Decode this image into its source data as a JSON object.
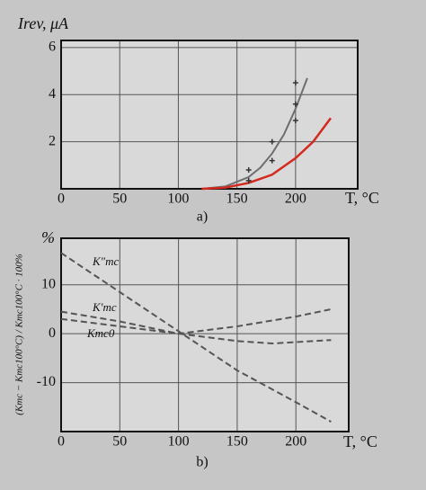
{
  "chart_data": [
    {
      "type": "line",
      "y_label": "Irev, μA",
      "x_label": "T, °C",
      "caption": "a)",
      "xlim": [
        0,
        253
      ],
      "ylim": [
        0,
        6.3
      ],
      "xticks": [
        0,
        50,
        100,
        150,
        200
      ],
      "yticks": [
        2,
        4,
        6
      ],
      "grid": true,
      "series": [
        {
          "color": "#6e6e6e",
          "mode": "line",
          "dash": false,
          "x": [
            120,
            140,
            160,
            170,
            180,
            190,
            200,
            210
          ],
          "values": [
            0,
            0.1,
            0.5,
            0.9,
            1.5,
            2.3,
            3.4,
            4.7
          ]
        },
        {
          "color": "#d42a1e",
          "mode": "line",
          "dash": false,
          "x": [
            120,
            140,
            160,
            180,
            200,
            215,
            230
          ],
          "values": [
            0,
            0.05,
            0.25,
            0.6,
            1.3,
            2.0,
            3.0
          ]
        },
        {
          "color": "#333333",
          "mode": "markers",
          "dash": false,
          "x": [
            160,
            160,
            180,
            180,
            200,
            200,
            200
          ],
          "values": [
            0.35,
            0.8,
            1.2,
            2.0,
            2.9,
            3.6,
            4.5
          ]
        }
      ]
    },
    {
      "type": "line",
      "y_label": "%",
      "y_axis_title": "(Kmc − Kmc100°C) / Kmc100°C · 100%",
      "x_label": "T, °C",
      "caption": "b)",
      "xlim": [
        0,
        245
      ],
      "ylim": [
        -20,
        19.5
      ],
      "xticks": [
        0,
        50,
        100,
        150,
        200
      ],
      "yticks": [
        10,
        0,
        -10
      ],
      "grid": true,
      "series": [
        {
          "name": "K″mc",
          "color": "#555555",
          "mode": "line",
          "dash": true,
          "x": [
            0,
            50,
            100,
            150,
            200,
            230
          ],
          "values": [
            16.5,
            8.5,
            0.5,
            -7.5,
            -14,
            -18
          ]
        },
        {
          "name": "K′mc",
          "color": "#555555",
          "mode": "line",
          "dash": true,
          "x": [
            0,
            50,
            100,
            150,
            200,
            230
          ],
          "values": [
            4.5,
            2.5,
            0,
            1.5,
            3.5,
            5
          ]
        },
        {
          "name": "Kmc0",
          "color": "#555555",
          "mode": "line",
          "dash": true,
          "x": [
            0,
            50,
            100,
            150,
            180,
            230
          ],
          "values": [
            3,
            1.5,
            0,
            -1.5,
            -2,
            -1.3
          ]
        }
      ]
    }
  ]
}
